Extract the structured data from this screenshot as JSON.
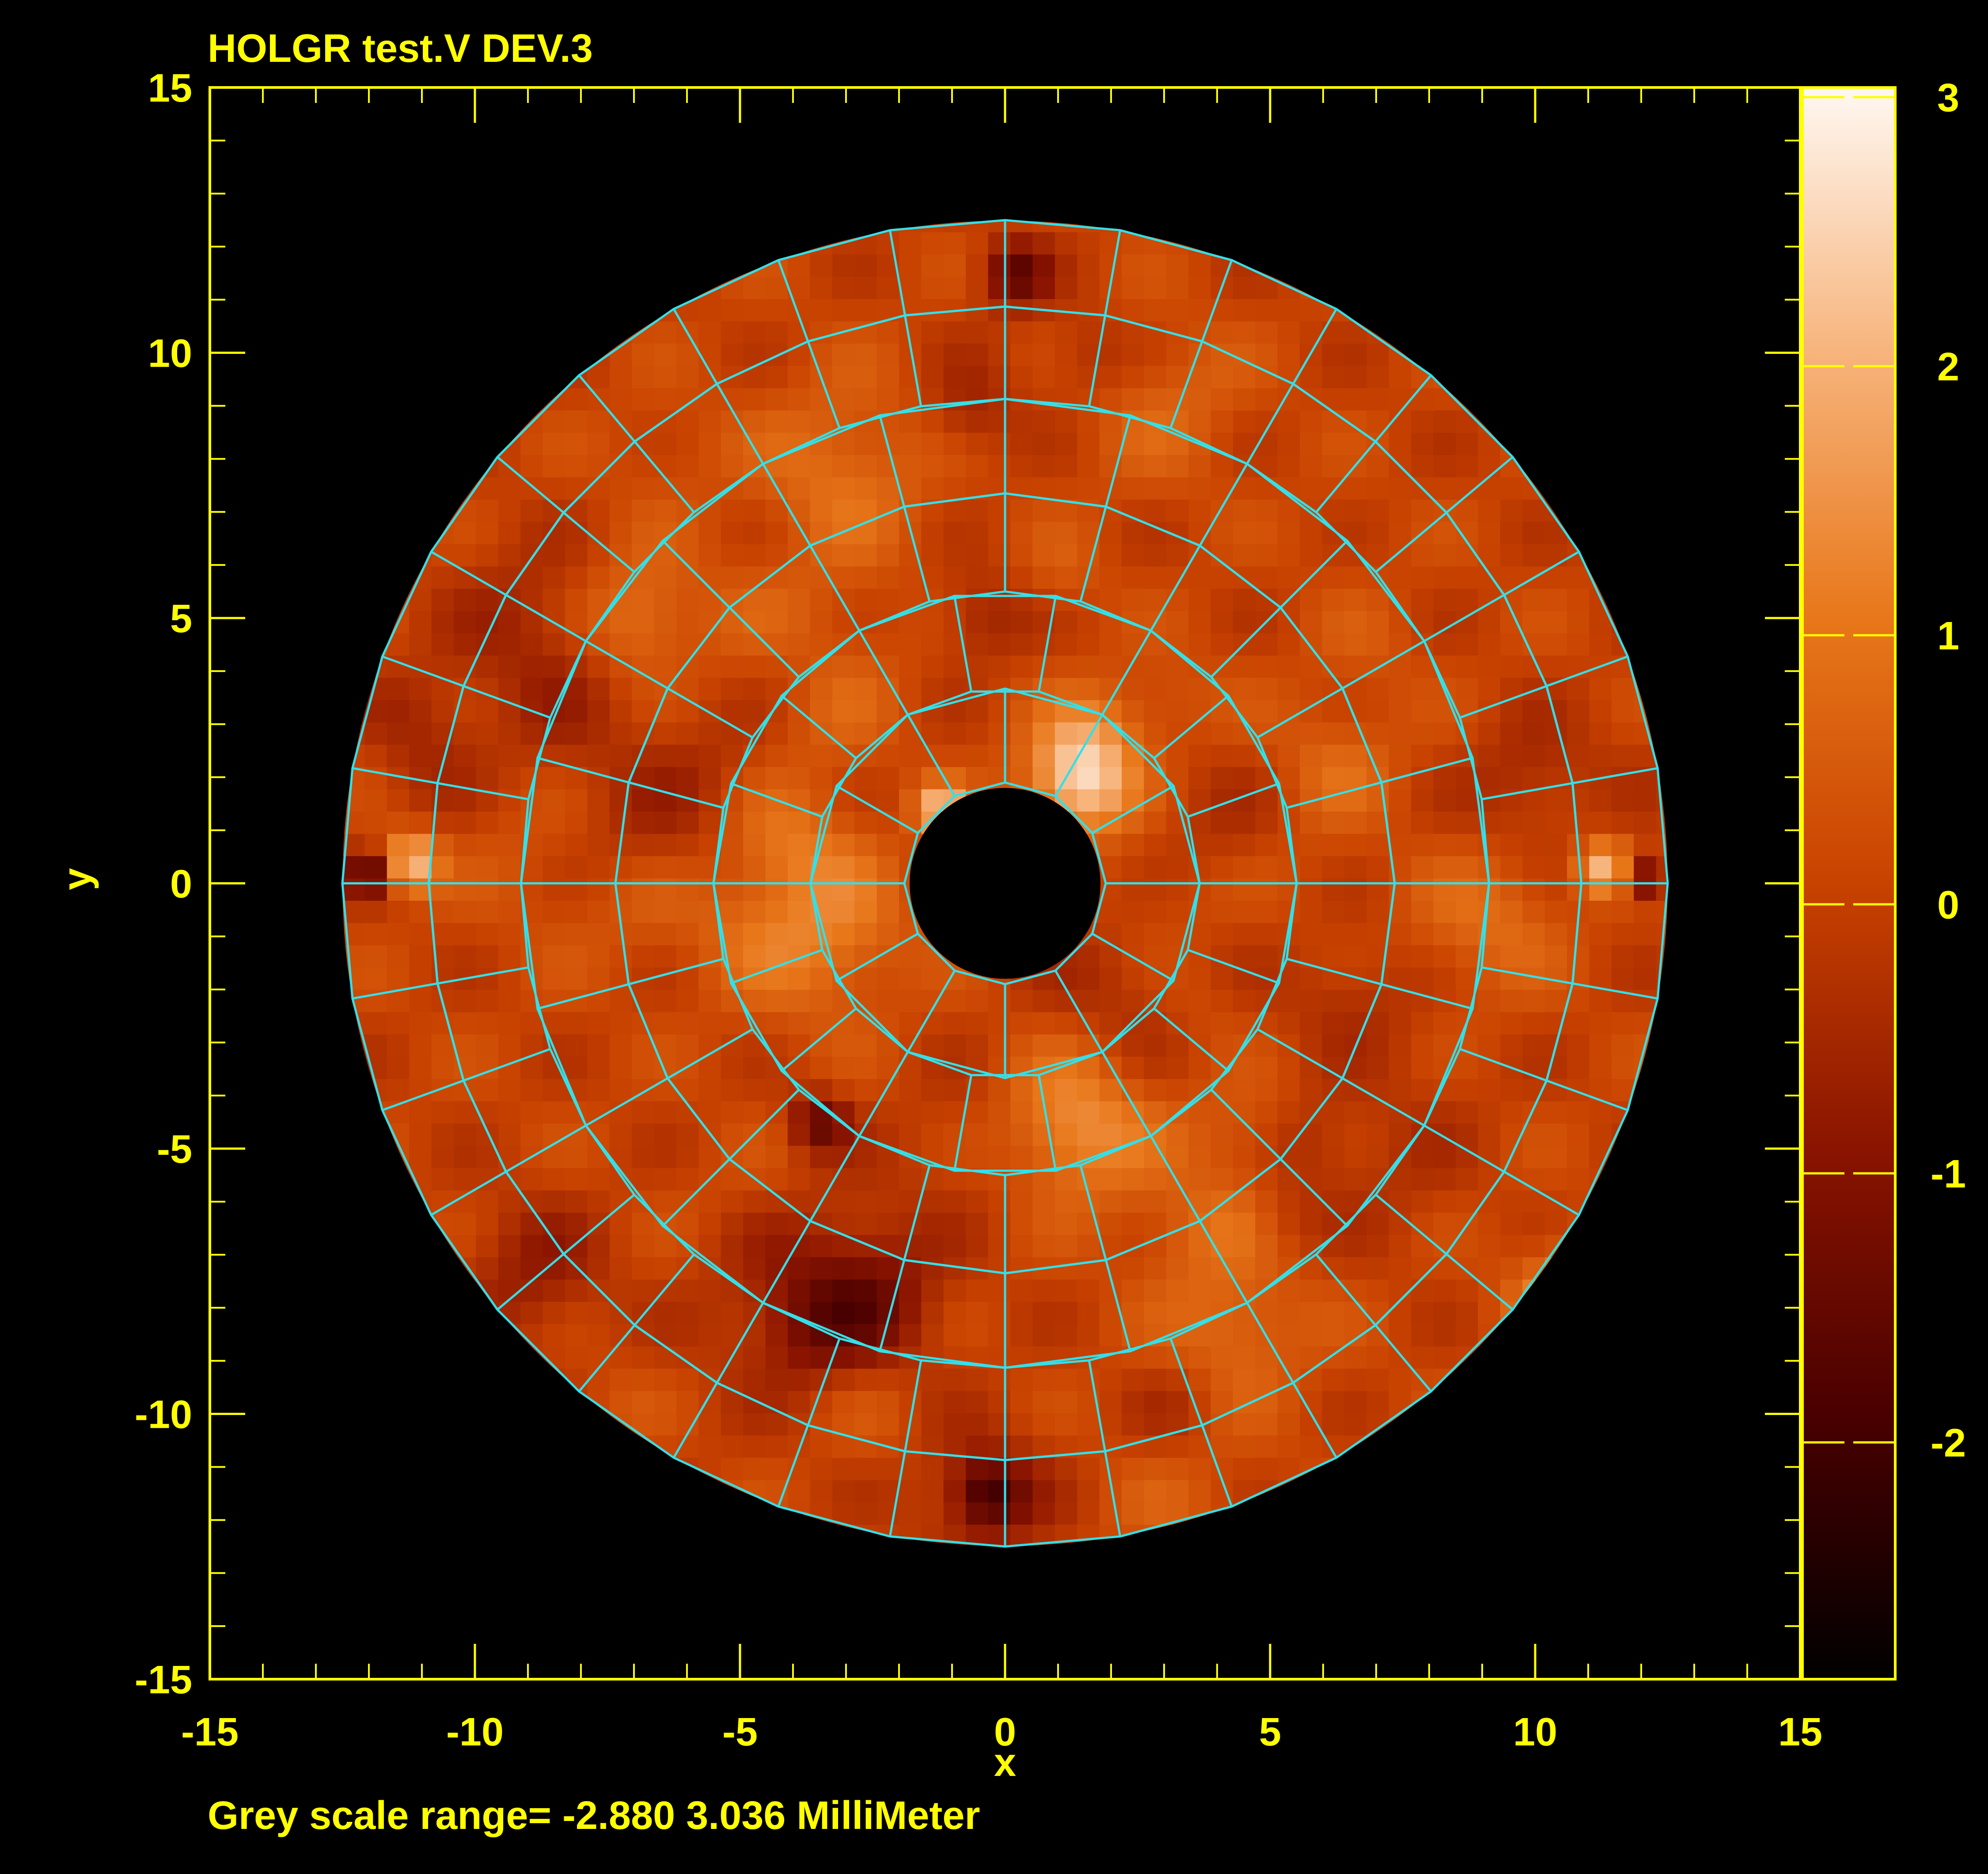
{
  "chart_data": {
    "type": "heatmap",
    "title": "HOLGR test.V DEV.3",
    "xlabel": "x",
    "ylabel": "y",
    "footer": "Grey scale range= -2.880 3.036 MilliMeter",
    "xlim": [
      -15,
      15
    ],
    "ylim": [
      -15,
      15
    ],
    "x_ticks": [
      -15,
      -10,
      -5,
      0,
      5,
      10,
      15
    ],
    "y_ticks": [
      15,
      10,
      5,
      0,
      -5,
      -10,
      -15
    ],
    "x_tick_labels": [
      "-15",
      "-10",
      "-5",
      "0",
      "5",
      "10",
      "15"
    ],
    "y_tick_labels": [
      "15",
      "10",
      "5",
      "0",
      "-5",
      "-10",
      "-15"
    ],
    "colorbar": {
      "min": -2.88,
      "max": 3.036,
      "ticks": [
        3,
        2,
        1,
        0,
        -1,
        -2
      ],
      "tick_labels": [
        "3",
        "2",
        "1",
        "0",
        "-1",
        "-2"
      ],
      "colormap": [
        "#000000",
        "#4a0000",
        "#8a1400",
        "#c84200",
        "#e8771a",
        "#f7b47c",
        "#fff8f2"
      ]
    },
    "dish": {
      "inner_radius": 1.8,
      "outer_radius": 12.5,
      "panel_ring_radii": [
        1.9,
        3.67,
        5.5,
        7.35,
        9.13,
        10.87,
        12.5
      ],
      "panels_per_ring": [
        12,
        18,
        24,
        24,
        36,
        36
      ]
    },
    "colors": {
      "axes": "#ffff00",
      "text": "#ffff00",
      "panel_grid": "#33e0e8",
      "background": "#000000"
    }
  }
}
